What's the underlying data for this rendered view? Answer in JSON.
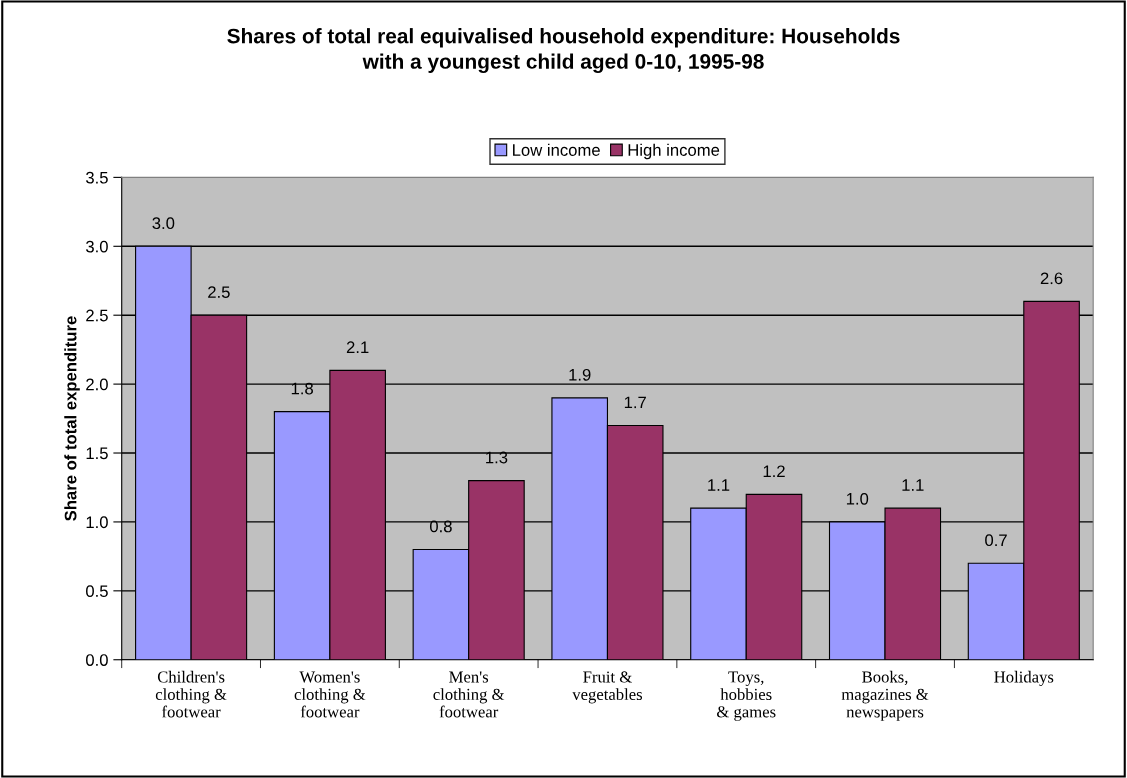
{
  "chart_data": {
    "type": "bar",
    "title": "Shares of total real equivalised household expenditure: Households\nwith a youngest child aged 0-10, 1995-98",
    "ylabel": "Share of total expenditure",
    "categories": [
      "Children's\nclothing &\nfootwear",
      "Women's\nclothing &\nfootwear",
      "Men's\nclothing &\nfootwear",
      "Fruit &\nvegetables",
      "Toys,\nhobbies\n& games",
      "Books,\nmagazines &\nnewspapers",
      "Holidays"
    ],
    "series": [
      {
        "name": "Low income",
        "color": "#9999ff",
        "values": [
          3.0,
          1.8,
          0.8,
          1.9,
          1.1,
          1.0,
          0.7
        ],
        "value_labels": [
          "3.0",
          "1.8",
          "0.8",
          "1.9",
          "1.1",
          "1.0",
          "0.7"
        ]
      },
      {
        "name": "High income",
        "color": "#993366",
        "values": [
          2.5,
          2.1,
          1.3,
          1.7,
          1.2,
          1.1,
          2.6
        ],
        "value_labels": [
          "2.5",
          "2.1",
          "1.3",
          "1.7",
          "1.2",
          "1.1",
          "2.6"
        ]
      }
    ],
    "ylim": [
      0,
      3.5
    ],
    "yticks": [
      "0.0",
      "0.5",
      "1.0",
      "1.5",
      "2.0",
      "2.5",
      "3.0",
      "3.5"
    ],
    "grid": "y",
    "legend": "top"
  }
}
